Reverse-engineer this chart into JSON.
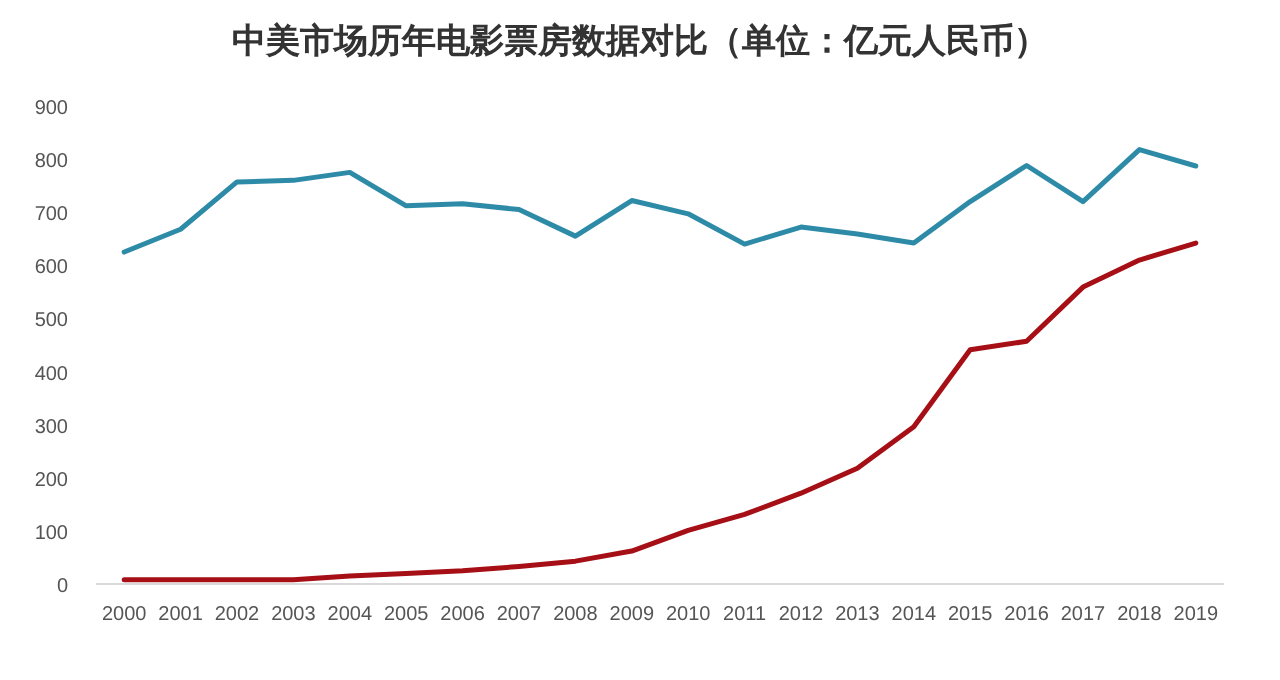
{
  "chart_data": {
    "type": "line",
    "title": "中美市场历年电影票房数据对比（单位：亿元人民币）",
    "categories": [
      "2000",
      "2001",
      "2002",
      "2003",
      "2004",
      "2005",
      "2006",
      "2007",
      "2008",
      "2009",
      "2010",
      "2011",
      "2012",
      "2013",
      "2014",
      "2015",
      "2016",
      "2017",
      "2018",
      "2019"
    ],
    "series": [
      {
        "color": "#2e8ba8",
        "values": [
          625,
          668,
          757,
          760,
          775,
          712,
          716,
          705,
          655,
          722,
          697,
          640,
          672,
          659,
          642,
          720,
          788,
          720,
          818,
          787
        ]
      },
      {
        "color": "#a50f15",
        "values": [
          8,
          8,
          8,
          8,
          15,
          20,
          25,
          33,
          43,
          62,
          101,
          131,
          171,
          218,
          296,
          441,
          457,
          559,
          610,
          642
        ]
      }
    ],
    "ylim": [
      0,
      900
    ],
    "yticks": [
      0,
      100,
      200,
      300,
      400,
      500,
      600,
      700,
      800,
      900
    ],
    "grid": false,
    "marker": "none",
    "line_style": "solid"
  }
}
